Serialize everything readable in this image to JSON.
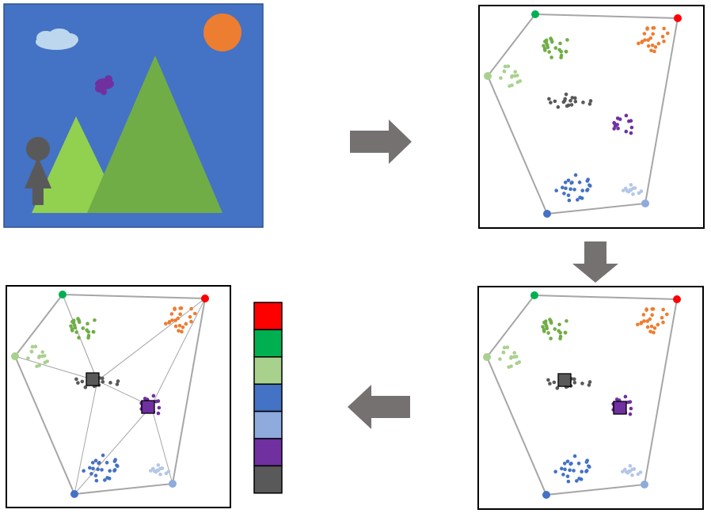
{
  "scene": {
    "colors": {
      "sky": "#4472c4",
      "sun": "#ed7d31",
      "cloud": "#bdd7ee",
      "bird": "#7030a0",
      "mountain_large": "#70ad47",
      "mountain_small": "#92d050",
      "person": "#595959"
    }
  },
  "palette": {
    "colors": [
      "#ff0000",
      "#00b050",
      "#a9d18e",
      "#4472c4",
      "#8faadc",
      "#7030a0",
      "#595959"
    ]
  },
  "clusters": [
    {
      "name": "dark-green",
      "color": "#70ad47"
    },
    {
      "name": "orange",
      "color": "#ed7d31"
    },
    {
      "name": "light-green",
      "color": "#a9d18e"
    },
    {
      "name": "gray",
      "color": "#595959"
    },
    {
      "name": "purple",
      "color": "#7030a0"
    },
    {
      "name": "blue",
      "color": "#4472c4"
    },
    {
      "name": "light-blue",
      "color": "#b4c7e7"
    }
  ],
  "hull_vertices": [
    {
      "name": "green",
      "color": "#00b050"
    },
    {
      "name": "red",
      "color": "#ff0000"
    },
    {
      "name": "light-green",
      "color": "#a9d18e"
    },
    {
      "name": "blue",
      "color": "#4472c4"
    },
    {
      "name": "light-blue",
      "color": "#8faadc"
    }
  ],
  "arrows": {
    "color": "#767171",
    "directions": [
      "right",
      "down",
      "left"
    ]
  }
}
